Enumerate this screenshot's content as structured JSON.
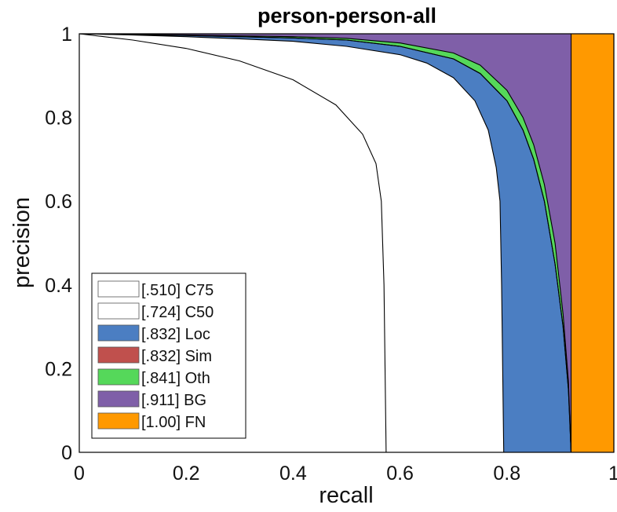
{
  "chart_data": {
    "type": "area",
    "title": "person-person-all",
    "xlabel": "recall",
    "ylabel": "precision",
    "xlim": [
      0,
      1
    ],
    "ylim": [
      0,
      1
    ],
    "x_ticks": [
      "0",
      "0.2",
      "0.4",
      "0.6",
      "0.8",
      "1"
    ],
    "y_ticks": [
      "0",
      "0.2",
      "0.4",
      "0.6",
      "0.8",
      "1"
    ],
    "grid": false,
    "legend_position": "bottom-left",
    "series": [
      {
        "name": "C75",
        "score": ".510",
        "color": "#ffffff",
        "points": [
          [
            0,
            1
          ],
          [
            0.1,
            0.985
          ],
          [
            0.2,
            0.965
          ],
          [
            0.3,
            0.935
          ],
          [
            0.4,
            0.89
          ],
          [
            0.48,
            0.83
          ],
          [
            0.53,
            0.76
          ],
          [
            0.555,
            0.69
          ],
          [
            0.565,
            0.6
          ],
          [
            0.57,
            0.4
          ],
          [
            0.572,
            0.2
          ],
          [
            0.574,
            0
          ]
        ]
      },
      {
        "name": "C50",
        "score": ".724",
        "color": "#ffffff",
        "points": [
          [
            0,
            1
          ],
          [
            0.1,
            0.997
          ],
          [
            0.2,
            0.993
          ],
          [
            0.3,
            0.988
          ],
          [
            0.4,
            0.982
          ],
          [
            0.5,
            0.97
          ],
          [
            0.6,
            0.95
          ],
          [
            0.65,
            0.93
          ],
          [
            0.7,
            0.895
          ],
          [
            0.74,
            0.84
          ],
          [
            0.765,
            0.77
          ],
          [
            0.78,
            0.68
          ],
          [
            0.787,
            0.6
          ],
          [
            0.79,
            0.4
          ],
          [
            0.792,
            0.2
          ],
          [
            0.794,
            0
          ]
        ]
      },
      {
        "name": "Loc",
        "score": ".832",
        "color": "#4b7ec2",
        "points": [
          [
            0,
            1
          ],
          [
            0.2,
            0.996
          ],
          [
            0.4,
            0.99
          ],
          [
            0.5,
            0.985
          ],
          [
            0.6,
            0.97
          ],
          [
            0.7,
            0.94
          ],
          [
            0.75,
            0.905
          ],
          [
            0.8,
            0.84
          ],
          [
            0.83,
            0.77
          ],
          [
            0.85,
            0.7
          ],
          [
            0.87,
            0.6
          ],
          [
            0.89,
            0.45
          ],
          [
            0.905,
            0.3
          ],
          [
            0.915,
            0.15
          ],
          [
            0.92,
            0
          ]
        ]
      },
      {
        "name": "Sim",
        "score": ".832",
        "color": "#c0504d",
        "points": [
          [
            0,
            1
          ],
          [
            0.2,
            0.996
          ],
          [
            0.4,
            0.99
          ],
          [
            0.5,
            0.985
          ],
          [
            0.6,
            0.97
          ],
          [
            0.7,
            0.94
          ],
          [
            0.75,
            0.905
          ],
          [
            0.8,
            0.84
          ],
          [
            0.83,
            0.77
          ],
          [
            0.85,
            0.7
          ],
          [
            0.87,
            0.6
          ],
          [
            0.89,
            0.45
          ],
          [
            0.905,
            0.3
          ],
          [
            0.915,
            0.15
          ],
          [
            0.92,
            0
          ]
        ]
      },
      {
        "name": "Oth",
        "score": ".841",
        "color": "#55d85a",
        "points": [
          [
            0,
            1
          ],
          [
            0.2,
            0.997
          ],
          [
            0.4,
            0.993
          ],
          [
            0.5,
            0.989
          ],
          [
            0.6,
            0.978
          ],
          [
            0.7,
            0.954
          ],
          [
            0.75,
            0.925
          ],
          [
            0.8,
            0.865
          ],
          [
            0.83,
            0.8
          ],
          [
            0.85,
            0.735
          ],
          [
            0.87,
            0.64
          ],
          [
            0.89,
            0.5
          ],
          [
            0.905,
            0.33
          ],
          [
            0.915,
            0.17
          ],
          [
            0.92,
            0
          ]
        ]
      },
      {
        "name": "BG",
        "score": ".911",
        "color": "#7f5fa8",
        "points": [
          [
            0,
            1
          ],
          [
            0.92,
            1
          ],
          [
            0.92,
            0
          ]
        ]
      },
      {
        "name": "FN",
        "score": "1.00",
        "color": "#ff9900",
        "points": [
          [
            0,
            1
          ],
          [
            1,
            1
          ],
          [
            1,
            0
          ]
        ]
      }
    ]
  }
}
